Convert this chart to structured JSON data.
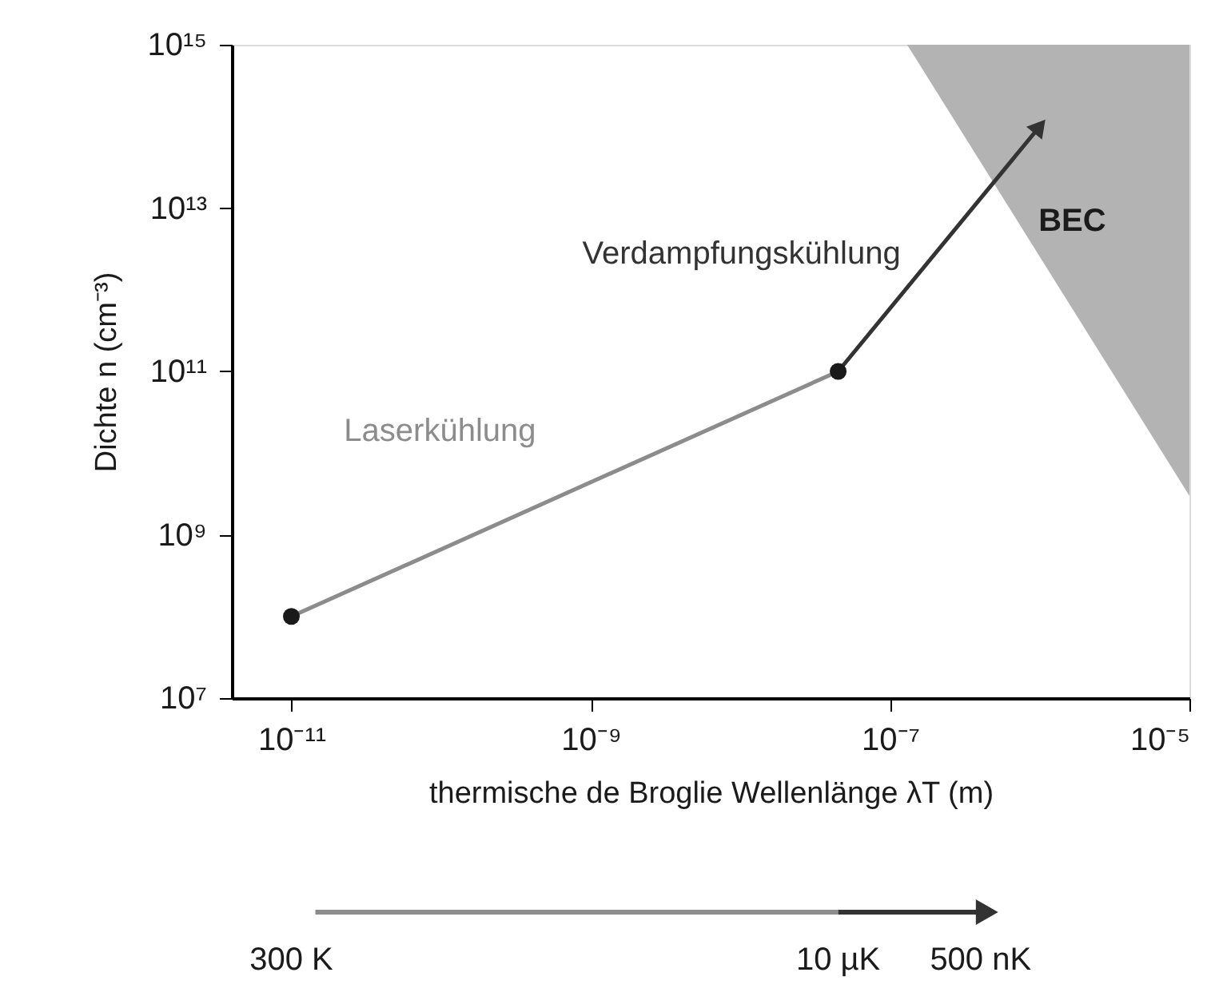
{
  "chart_data": {
    "type": "line",
    "xlabel": "thermische de Broglie Wellenlänge λT (m)",
    "ylabel": "Dichte n (cm⁻³)",
    "log": "xy",
    "xlim": [
      4e-12,
      1e-05
    ],
    "xticks": [
      {
        "value": 1e-11,
        "label": "10⁻¹¹"
      },
      {
        "value": 1e-09,
        "label": "10⁻⁹"
      },
      {
        "value": 1e-07,
        "label": "10⁻⁷"
      },
      {
        "value": 1e-05,
        "label": "10⁻⁵"
      }
    ],
    "ylim": [
      10000000.0,
      1000000000000000.0
    ],
    "yticks": [
      {
        "value": 10000000.0,
        "label": "10⁷"
      },
      {
        "value": 1000000000.0,
        "label": "10⁹"
      },
      {
        "value": 100000000000.0,
        "label": "10¹¹"
      },
      {
        "value": 10000000000000.0,
        "label": "10¹³"
      },
      {
        "value": 1000000000000000.0,
        "label": "10¹⁵"
      }
    ],
    "annotations": [
      "300 K",
      "10 µK",
      "500 nK"
    ],
    "grid": false,
    "series": [
      {
        "name": "BEC",
        "type": "area",
        "color": "#b3b3b3",
        "x": [
          1.3e-07,
          1e-05
        ],
        "values": [
          1000000000000000.0,
          3000000000.0
        ]
      },
      {
        "name": "Laserkühlung",
        "color": "#8c8c8c",
        "x": [
          1e-11,
          4.5e-08
        ],
        "values": [
          100000000.0,
          100000000000.0
        ]
      },
      {
        "name": "Verdampfungskühlung",
        "color": "#333333",
        "x": [
          4.5e-08,
          1e-06
        ],
        "values": [
          100000000000.0,
          100000000000000.0
        ]
      },
      {
        "type": "scatter",
        "color": "#1a1a1a",
        "marker": "circle",
        "x": [
          1e-11,
          4.5e-08
        ],
        "values": [
          100000000.0,
          100000000000.0
        ]
      }
    ]
  }
}
